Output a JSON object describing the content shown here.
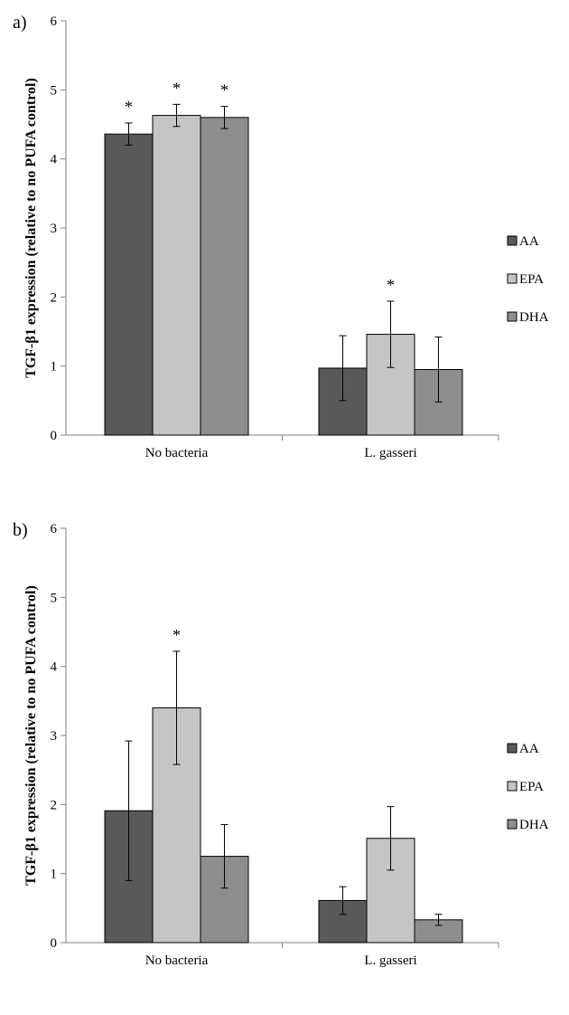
{
  "chart_data": [
    {
      "type": "bar",
      "panel_label": "a)",
      "ylabel": "TGF-β1 expression (relative to no PUFA control)",
      "categories": [
        "No bacteria",
        "L. gasseri"
      ],
      "ylim": [
        0,
        6
      ],
      "yticks": [
        "0",
        "1",
        "2",
        "3",
        "4",
        "5",
        "6"
      ],
      "legend_position": "right",
      "grid": false,
      "series": [
        {
          "name": "AA",
          "color": "#595959",
          "values": [
            4.36,
            0.97
          ],
          "error": [
            0.16,
            0.47
          ],
          "significance": [
            "*",
            ""
          ]
        },
        {
          "name": "EPA",
          "color": "#c5c5c5",
          "values": [
            4.63,
            1.46
          ],
          "error": [
            0.16,
            0.48
          ],
          "significance": [
            "*",
            "*"
          ]
        },
        {
          "name": "DHA",
          "color": "#8c8e91",
          "values": [
            4.6,
            0.95
          ],
          "error": [
            0.16,
            0.47
          ],
          "significance": [
            "*",
            ""
          ]
        }
      ]
    },
    {
      "type": "bar",
      "panel_label": "b)",
      "ylabel": "TGF-β1 expression (relative to no PUFA control)",
      "categories": [
        "No bacteria",
        "L. gasseri"
      ],
      "ylim": [
        0,
        6
      ],
      "yticks": [
        "0",
        "1",
        "2",
        "3",
        "4",
        "5",
        "6"
      ],
      "legend_position": "right",
      "grid": false,
      "series": [
        {
          "name": "AA",
          "color": "#595959",
          "values": [
            1.91,
            0.61
          ],
          "error": [
            1.01,
            0.2
          ],
          "significance": [
            "",
            ""
          ]
        },
        {
          "name": "EPA",
          "color": "#c5c5c5",
          "values": [
            3.4,
            1.51
          ],
          "error": [
            0.82,
            0.46
          ],
          "significance": [
            "*",
            ""
          ]
        },
        {
          "name": "DHA",
          "color": "#8c8e91",
          "values": [
            1.25,
            0.33
          ],
          "error": [
            0.46,
            0.08
          ],
          "significance": [
            "",
            ""
          ]
        }
      ]
    }
  ]
}
